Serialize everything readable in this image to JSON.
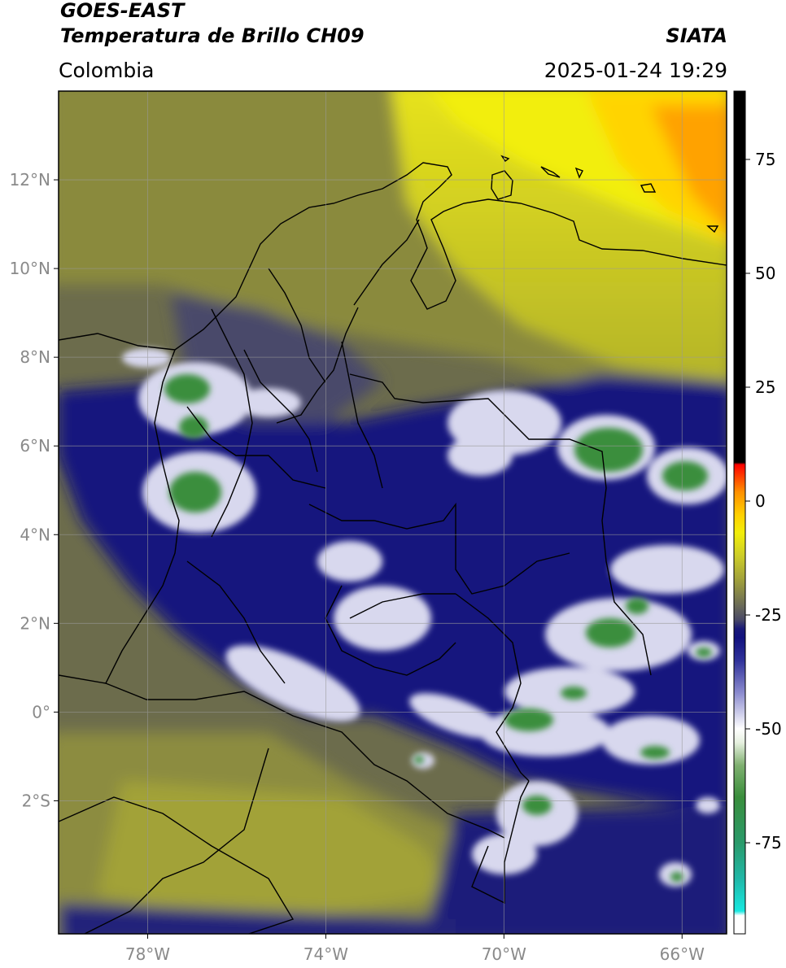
{
  "header": {
    "title_line1": "GOES-EAST",
    "title_line2": "Temperatura de Brillo CH09",
    "source": "SIATA",
    "region": "Colombia",
    "timestamp": "2025-01-24 19:29"
  },
  "map": {
    "lon_range": [
      -80,
      -65
    ],
    "lat_range": [
      -5,
      14
    ],
    "lat_ticks": [
      {
        "value": 12,
        "label": "12°N"
      },
      {
        "value": 10,
        "label": "10°N"
      },
      {
        "value": 8,
        "label": "8°N"
      },
      {
        "value": 6,
        "label": "6°N"
      },
      {
        "value": 4,
        "label": "4°N"
      },
      {
        "value": 2,
        "label": "2°N"
      },
      {
        "value": 0,
        "label": "0°"
      },
      {
        "value": -2,
        "label": "2°S"
      }
    ],
    "lon_ticks": [
      {
        "value": -78,
        "label": "78°W"
      },
      {
        "value": -74,
        "label": "74°W"
      },
      {
        "value": -70,
        "label": "70°W"
      },
      {
        "value": -66,
        "label": "66°W"
      }
    ],
    "grid": true
  },
  "colorbar": {
    "range": [
      -95,
      90
    ],
    "ticks": [
      {
        "value": 75,
        "label": "75"
      },
      {
        "value": 50,
        "label": "50"
      },
      {
        "value": 25,
        "label": "25"
      },
      {
        "value": 0,
        "label": "0"
      },
      {
        "value": -25,
        "label": "-25"
      },
      {
        "value": -50,
        "label": "-50"
      },
      {
        "value": -75,
        "label": "-75"
      }
    ],
    "stops": [
      {
        "value": -95,
        "color": "#ffffff"
      },
      {
        "value": -91,
        "color": "#ffffff"
      },
      {
        "value": -90,
        "color": "#18e8e0"
      },
      {
        "value": -83,
        "color": "#20b8a8"
      },
      {
        "value": -75,
        "color": "#2a9a6a"
      },
      {
        "value": -65,
        "color": "#3a8e3c"
      },
      {
        "value": -58,
        "color": "#7fb070"
      },
      {
        "value": -53,
        "color": "#e6f0e0"
      },
      {
        "value": -50,
        "color": "#ffffff"
      },
      {
        "value": -42,
        "color": "#8a8ace"
      },
      {
        "value": -35,
        "color": "#30329a"
      },
      {
        "value": -30,
        "color": "#12127e"
      },
      {
        "value": -28,
        "color": "#1a1a78"
      },
      {
        "value": -26,
        "color": "#4a4a66"
      },
      {
        "value": -23,
        "color": "#6a6a58"
      },
      {
        "value": -18,
        "color": "#9a9a3e"
      },
      {
        "value": -12,
        "color": "#cdcd28"
      },
      {
        "value": -7,
        "color": "#f2ee0a"
      },
      {
        "value": -3,
        "color": "#ffd000"
      },
      {
        "value": 2,
        "color": "#ff9000"
      },
      {
        "value": 6,
        "color": "#ff3000"
      },
      {
        "value": 8,
        "color": "#ff0000"
      },
      {
        "value": 8.5,
        "color": "#000000"
      },
      {
        "value": 90,
        "color": "#000000"
      }
    ]
  },
  "colors": {
    "background_warm": "#6e6e48",
    "ocean_north": "#c9c925",
    "hot_spot": "#ff9a00",
    "cold_deep": "#141482",
    "cold_cloud": "#ffffff",
    "cold_core": "#3a8e3c"
  }
}
